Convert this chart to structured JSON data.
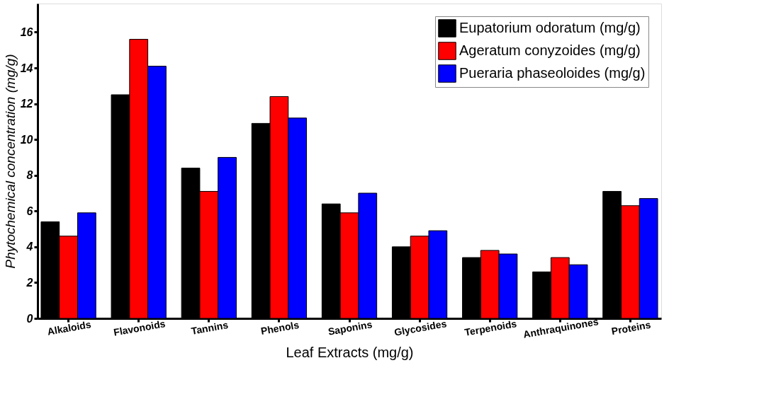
{
  "chart_data": {
    "type": "bar",
    "xlabel": "Leaf Extracts (mg/g)",
    "ylabel": "Phytochemical concentration (mg/g)",
    "categories": [
      "Alkaloids",
      "Flavonoids",
      "Tannins",
      "Phenols",
      "Saponins",
      "Glycosides",
      "Terpenoids",
      "Anthraquinones",
      "Proteins"
    ],
    "series": [
      {
        "name": "Eupatorium odoratum (mg/g)",
        "color": "#000000",
        "values": [
          5.4,
          12.5,
          8.4,
          10.9,
          6.4,
          4.0,
          3.4,
          2.6,
          7.1
        ]
      },
      {
        "name": "Ageratum conyzoides (mg/g)",
        "color": "#ff0000",
        "values": [
          4.6,
          15.6,
          7.1,
          12.4,
          5.9,
          4.6,
          3.8,
          3.4,
          6.3
        ]
      },
      {
        "name": "Pueraria phaseoloides (mg/g)",
        "color": "#0000ff",
        "values": [
          5.9,
          14.1,
          9.0,
          11.2,
          7.0,
          4.9,
          3.6,
          3.0,
          6.7
        ]
      }
    ],
    "ylim": [
      0,
      17.6
    ],
    "yticks": [
      0,
      2,
      4,
      6,
      8,
      10,
      12,
      14,
      16
    ],
    "grid": false,
    "legend": "top right"
  }
}
